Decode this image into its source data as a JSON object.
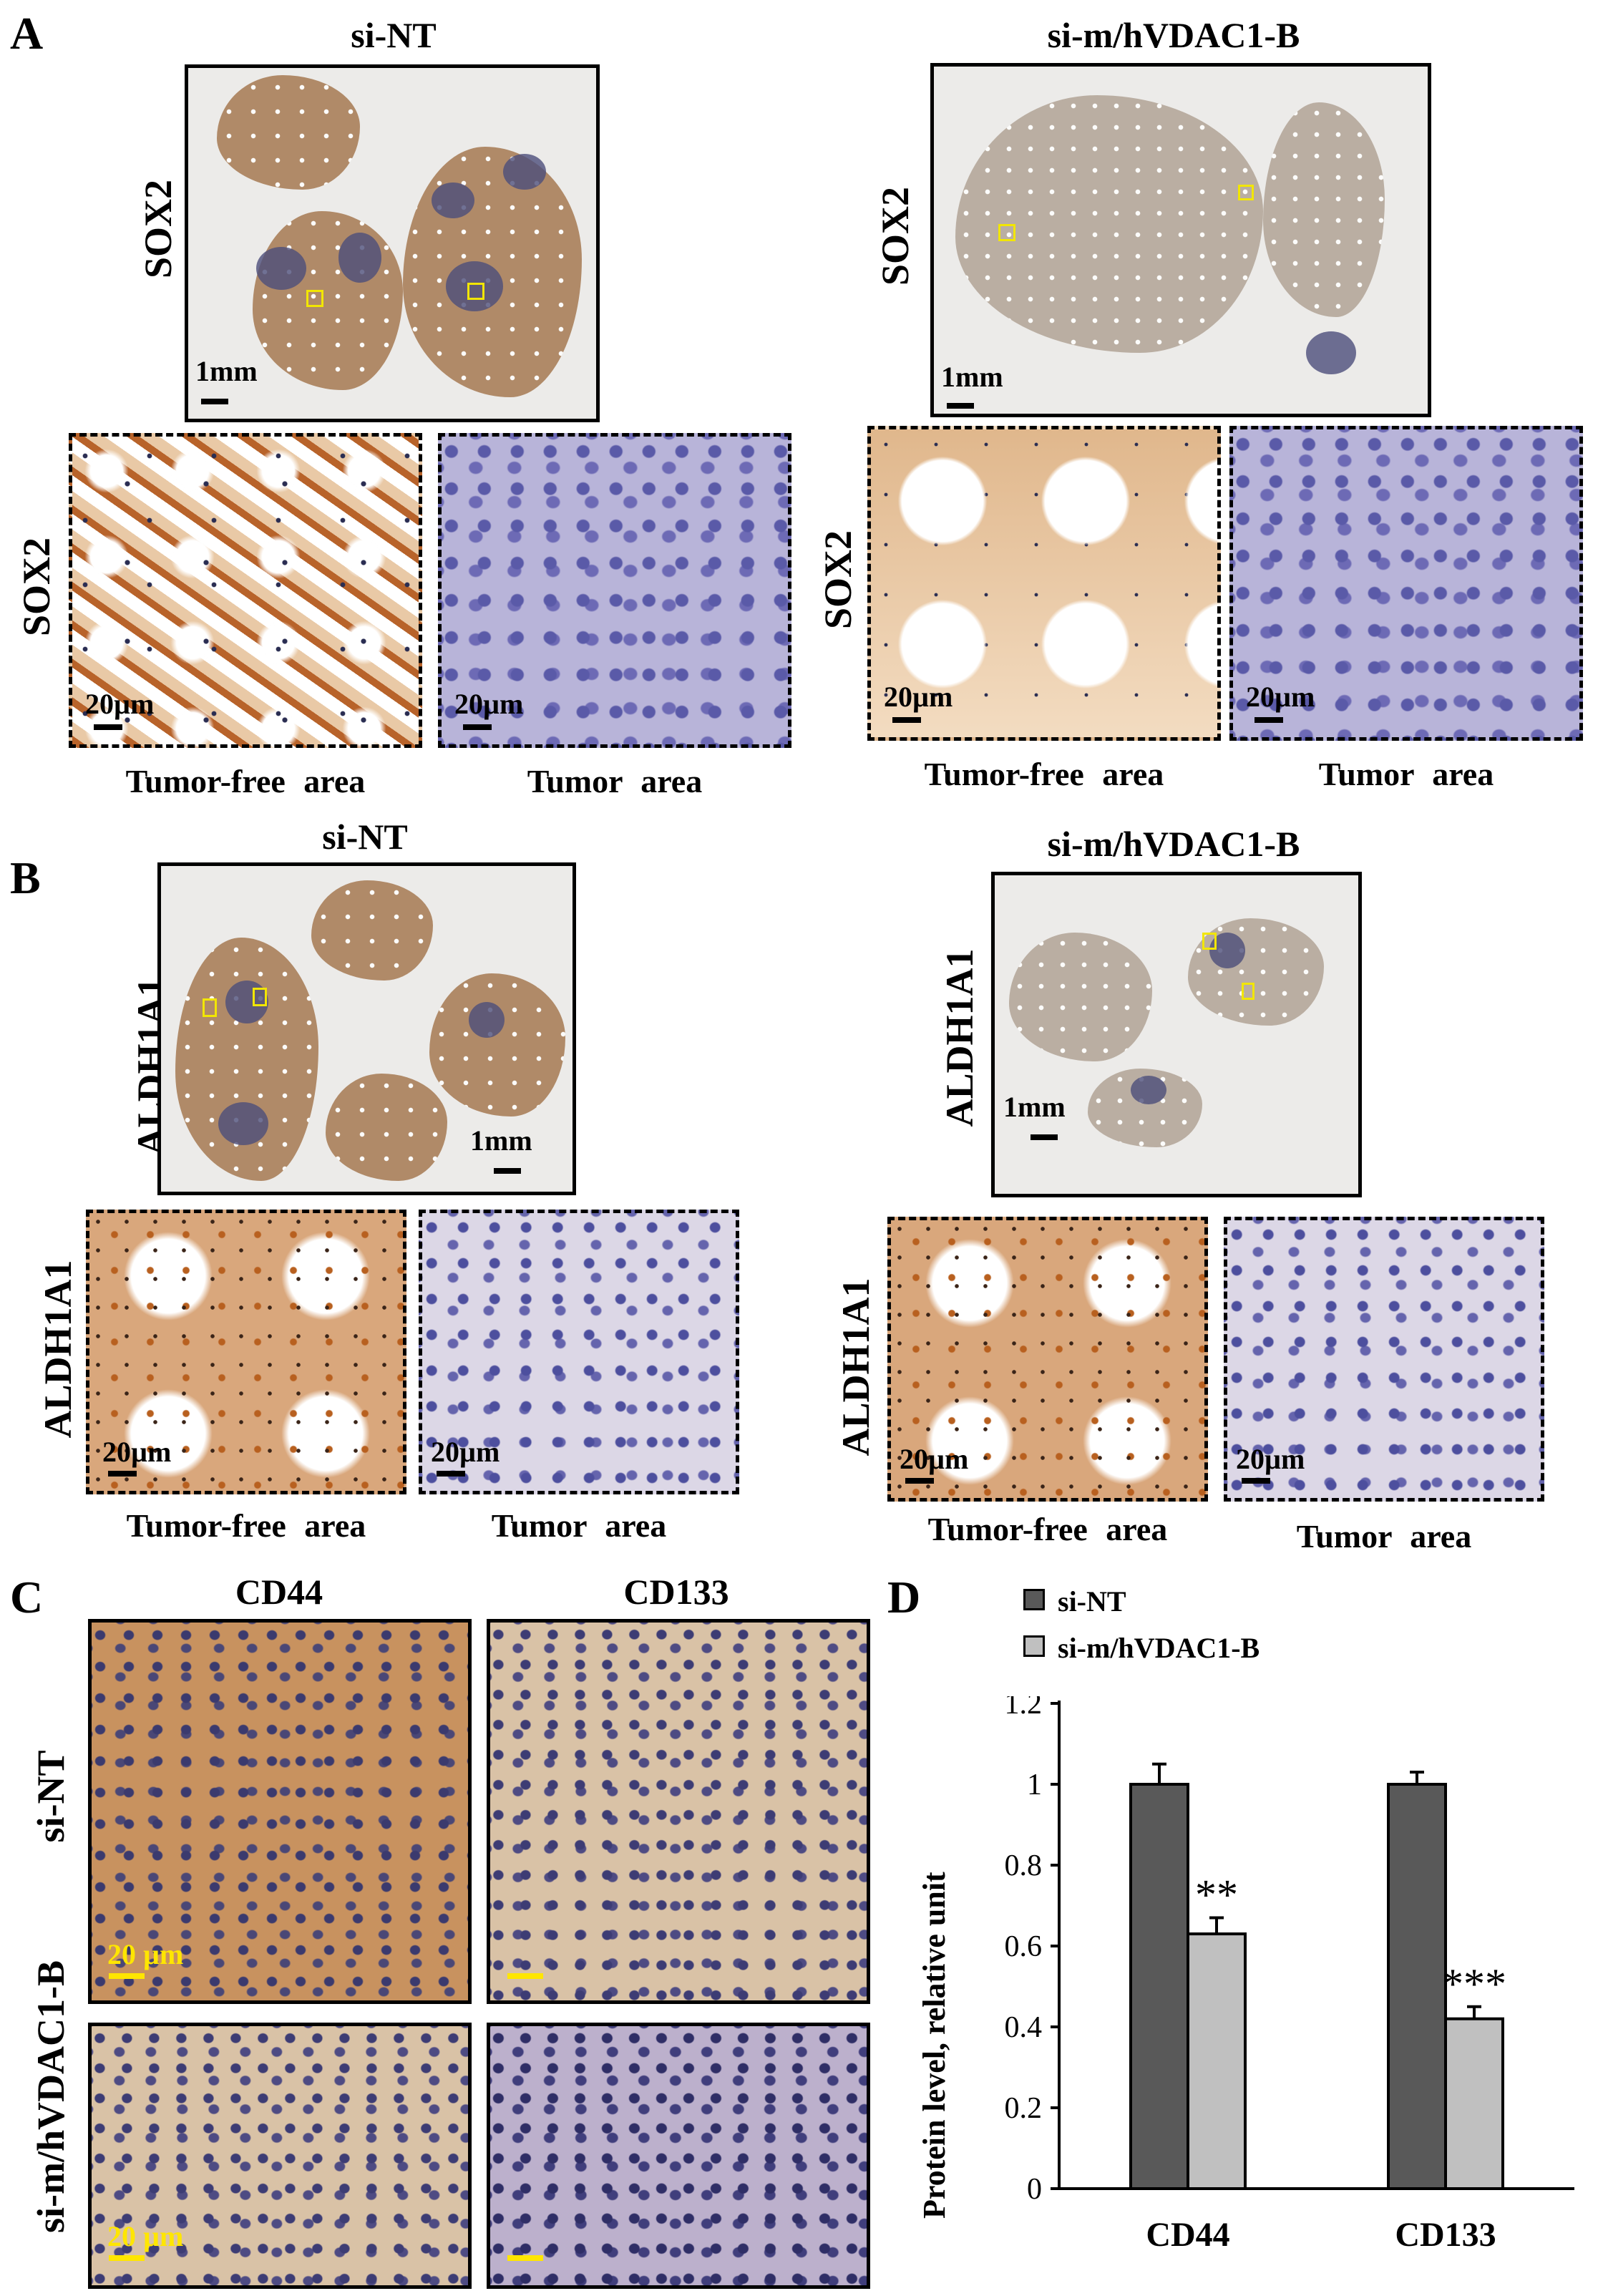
{
  "panelA": {
    "letter": "A",
    "left_title": "si-NT",
    "right_title": "si-m/hVDAC1-B",
    "marker": "SOX2",
    "scale_low": "1mm",
    "scale_high": "20µm",
    "caption_free": "Tumor-free area",
    "caption_tumor": "Tumor area"
  },
  "panelB": {
    "letter": "B",
    "left_title": "si-NT",
    "right_title": "si-m/hVDAC1-B",
    "marker": "ALDH1A1",
    "scale_low": "1mm",
    "scale_high": "20µm",
    "caption_free": "Tumor-free area",
    "caption_tumor": "Tumor area"
  },
  "panelC": {
    "letter": "C",
    "col1": "CD44",
    "col2": "CD133",
    "row1": "si-NT",
    "row2": "si-m/hVDAC1-B",
    "scale": "20 µm"
  },
  "panelD": {
    "letter": "D",
    "chart_data": {
      "type": "bar",
      "categories": [
        "CD44",
        "CD133"
      ],
      "series": [
        {
          "name": "si-NT",
          "values": [
            1.0,
            1.0
          ],
          "errors": [
            0.05,
            0.03
          ],
          "color": "#595959"
        },
        {
          "name": "si-m/hVDAC1-B",
          "values": [
            0.63,
            0.42
          ],
          "errors": [
            0.04,
            0.03
          ],
          "color": "#c0c0c0"
        }
      ],
      "annotations": [
        "",
        "**",
        "",
        "***"
      ],
      "ylabel": "Protein level, relative unit",
      "ylim": [
        0,
        1.2
      ],
      "yticks": [
        "0",
        "0.2",
        "0.4",
        "0.6",
        "0.8",
        "1",
        "1.2"
      ],
      "legend_position": "top-left"
    }
  }
}
